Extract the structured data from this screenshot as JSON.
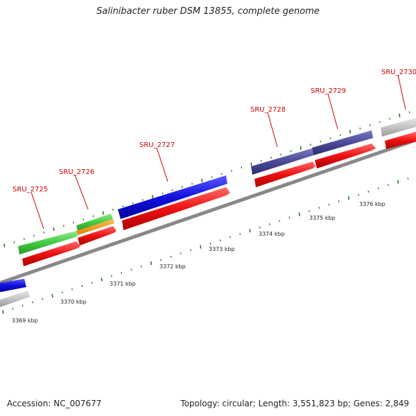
{
  "title": "Salinibacter ruber DSM 13855, complete genome",
  "accession": "Accession: NC_007677",
  "summary": "Topology: circular; Length: 3,551,823 bp; Genes: 2,849",
  "colors": {
    "backbone": "#888888",
    "cds": "#ee1111",
    "gene_blue": "#1111dd",
    "gene_green": "#44cc44",
    "gene_orange": "#ff9900",
    "gene_purple": "#4a4a99",
    "gene_grey": "#c4c4c4",
    "tick": "#227722",
    "label": "#cc0000"
  },
  "genes": [
    {
      "name": "SRU_2725"
    },
    {
      "name": "SRU_2726"
    },
    {
      "name": "SRU_2727"
    },
    {
      "name": "SRU_2728"
    },
    {
      "name": "SRU_2729"
    },
    {
      "name": "SRU_2730"
    }
  ],
  "kbp_labels": [
    "3369 kbp",
    "3370 kbp",
    "3371 kbp",
    "3372 kbp",
    "3373 kbp",
    "3374 kbp",
    "3375 kbp",
    "3376 kbp"
  ]
}
